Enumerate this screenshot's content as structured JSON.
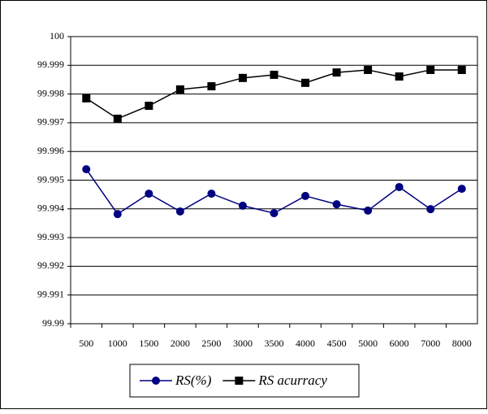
{
  "chart_data": {
    "type": "line",
    "categories": [
      "500",
      "1000",
      "1500",
      "2000",
      "2500",
      "3000",
      "3500",
      "4000",
      "4500",
      "5000",
      "6000",
      "7000",
      "8000"
    ],
    "series": [
      {
        "name": "RS(%)",
        "color": "#000080",
        "marker": "circle",
        "values": [
          99.99538,
          99.99382,
          99.99453,
          99.99391,
          99.99453,
          99.99411,
          99.99385,
          99.99445,
          99.99416,
          99.99394,
          99.99476,
          99.99399,
          99.9947
        ]
      },
      {
        "name": "RS acurracy",
        "color": "#000000",
        "marker": "square",
        "values": [
          99.99785,
          99.99714,
          99.99759,
          99.99816,
          99.99827,
          99.99856,
          99.99867,
          99.99839,
          99.99875,
          99.99884,
          99.99861,
          99.99884,
          99.99884
        ]
      }
    ],
    "ylim": [
      99.99,
      100
    ],
    "yticks": [
      99.99,
      99.991,
      99.992,
      99.993,
      99.994,
      99.995,
      99.996,
      99.997,
      99.998,
      99.999,
      100
    ],
    "grid": true,
    "legend": "bottom"
  }
}
